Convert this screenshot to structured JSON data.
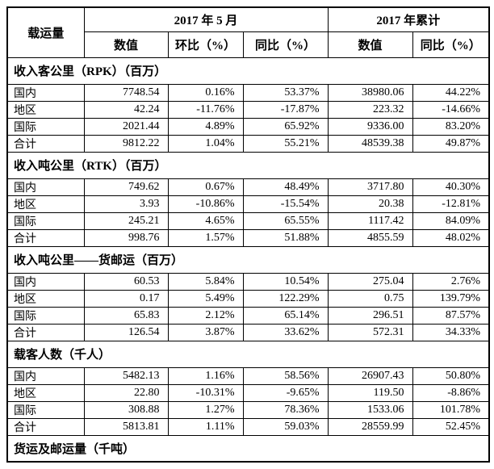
{
  "page": {
    "background_color": "#ffffff",
    "border_color": "#000000",
    "text_color": "#000000"
  },
  "table": {
    "header": {
      "category": "载运量",
      "may_group": "2017 年 5 月",
      "cum_group": "2017 年累计",
      "sub_cols": [
        "数值",
        "环比（%）",
        "同比（%）",
        "数值",
        "同比（%）"
      ]
    },
    "sections": [
      {
        "title": "收入客公里（RPK）（百万）",
        "rows": [
          {
            "label": "国内",
            "values": [
              "7748.54",
              "0.16%",
              "53.37%",
              "38980.06",
              "44.22%"
            ]
          },
          {
            "label": "地区",
            "values": [
              "42.24",
              "-11.76%",
              "-17.87%",
              "223.32",
              "-14.66%"
            ]
          },
          {
            "label": "国际",
            "values": [
              "2021.44",
              "4.89%",
              "65.92%",
              "9336.00",
              "83.20%"
            ]
          },
          {
            "label": "合计",
            "values": [
              "9812.22",
              "1.04%",
              "55.21%",
              "48539.38",
              "49.87%"
            ]
          }
        ]
      },
      {
        "title": "收入吨公里（RTK）（百万）",
        "rows": [
          {
            "label": "国内",
            "values": [
              "749.62",
              "0.67%",
              "48.49%",
              "3717.80",
              "40.30%"
            ]
          },
          {
            "label": "地区",
            "values": [
              "3.93",
              "-10.86%",
              "-15.54%",
              "20.38",
              "-12.81%"
            ]
          },
          {
            "label": "国际",
            "values": [
              "245.21",
              "4.65%",
              "65.55%",
              "1117.42",
              "84.09%"
            ]
          },
          {
            "label": "合计",
            "values": [
              "998.76",
              "1.57%",
              "51.88%",
              "4855.59",
              "48.02%"
            ]
          }
        ]
      },
      {
        "title": "收入吨公里——货邮运（百万）",
        "rows": [
          {
            "label": "国内",
            "values": [
              "60.53",
              "5.84%",
              "10.54%",
              "275.04",
              "2.76%"
            ]
          },
          {
            "label": "地区",
            "values": [
              "0.17",
              "5.49%",
              "122.29%",
              "0.75",
              "139.79%"
            ]
          },
          {
            "label": "国际",
            "values": [
              "65.83",
              "2.12%",
              "65.14%",
              "296.51",
              "87.57%"
            ]
          },
          {
            "label": "合计",
            "values": [
              "126.54",
              "3.87%",
              "33.62%",
              "572.31",
              "34.33%"
            ]
          }
        ]
      },
      {
        "title": "载客人数（千人）",
        "rows": [
          {
            "label": "国内",
            "values": [
              "5482.13",
              "1.16%",
              "58.56%",
              "26907.43",
              "50.80%"
            ]
          },
          {
            "label": "地区",
            "values": [
              "22.80",
              "-10.31%",
              "-9.65%",
              "119.50",
              "-8.86%"
            ]
          },
          {
            "label": "国际",
            "values": [
              "308.88",
              "1.27%",
              "78.36%",
              "1533.06",
              "101.78%"
            ]
          },
          {
            "label": "合计",
            "values": [
              "5813.81",
              "1.11%",
              "59.03%",
              "28559.99",
              "52.45%"
            ]
          }
        ]
      },
      {
        "title": "货运及邮运量（千吨）",
        "rows": []
      }
    ]
  }
}
